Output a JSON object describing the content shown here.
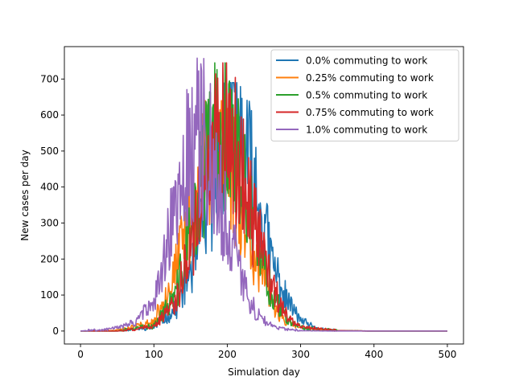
{
  "chart_data": {
    "type": "line",
    "xlabel": "Simulation day",
    "ylabel": "New cases per day",
    "xlim": [
      -22,
      522
    ],
    "ylim": [
      -36,
      790
    ],
    "xticks": [
      0,
      100,
      200,
      300,
      400,
      500
    ],
    "yticks": [
      0,
      100,
      200,
      300,
      400,
      500,
      600,
      700
    ],
    "grid": false,
    "legend_position": "top-right",
    "series": [
      {
        "name": "0.0% commuting to work",
        "color": "#1f77b4",
        "peak_day": 205,
        "width": 32,
        "amplitude": 560,
        "noise": 0.45,
        "seed": 11,
        "max": 690,
        "x": [
          0,
          50,
          100,
          130,
          160,
          180,
          190,
          200,
          205,
          210,
          220,
          240,
          260,
          280,
          300,
          320,
          350,
          400,
          500
        ],
        "y": [
          0,
          0,
          10,
          60,
          230,
          400,
          480,
          560,
          600,
          560,
          520,
          380,
          200,
          90,
          30,
          8,
          1,
          0,
          0
        ]
      },
      {
        "name": "0.25% commuting to work",
        "color": "#ff7f0e",
        "peak_day": 182,
        "width": 32,
        "amplitude": 540,
        "noise": 0.45,
        "seed": 23,
        "max": 640,
        "x": [
          0,
          50,
          100,
          130,
          160,
          180,
          190,
          200,
          220,
          240,
          260,
          280,
          300,
          350,
          400,
          500
        ],
        "y": [
          0,
          2,
          25,
          170,
          420,
          560,
          560,
          500,
          350,
          200,
          80,
          25,
          8,
          1,
          0,
          0
        ]
      },
      {
        "name": "0.5% commuting to work",
        "color": "#2ca02c",
        "peak_day": 190,
        "width": 32,
        "amplitude": 560,
        "noise": 0.45,
        "seed": 37,
        "max": 745,
        "x": [
          0,
          50,
          100,
          130,
          160,
          180,
          190,
          200,
          220,
          240,
          260,
          280,
          300,
          350,
          400,
          500
        ],
        "y": [
          0,
          0,
          15,
          100,
          360,
          540,
          580,
          540,
          420,
          240,
          110,
          40,
          10,
          1,
          0,
          0
        ]
      },
      {
        "name": "0.75% commuting to work",
        "color": "#d62728",
        "peak_day": 195,
        "width": 32,
        "amplitude": 560,
        "noise": 0.45,
        "seed": 51,
        "max": 745,
        "x": [
          0,
          50,
          100,
          130,
          160,
          180,
          195,
          210,
          220,
          240,
          260,
          280,
          300,
          350,
          400,
          500
        ],
        "y": [
          0,
          0,
          12,
          80,
          330,
          520,
          580,
          540,
          440,
          270,
          130,
          45,
          12,
          1,
          0,
          0
        ]
      },
      {
        "name": "1.0% commuting to work",
        "color": "#9467bd",
        "peak_day": 158,
        "width": 32,
        "amplitude": 540,
        "noise": 0.45,
        "seed": 67,
        "max": 760,
        "x": [
          0,
          50,
          80,
          100,
          130,
          150,
          160,
          170,
          180,
          200,
          220,
          240,
          260,
          280,
          300,
          350,
          400,
          500
        ],
        "y": [
          0,
          8,
          30,
          90,
          330,
          520,
          560,
          540,
          480,
          300,
          140,
          50,
          15,
          5,
          1,
          0,
          0,
          0
        ]
      }
    ]
  }
}
